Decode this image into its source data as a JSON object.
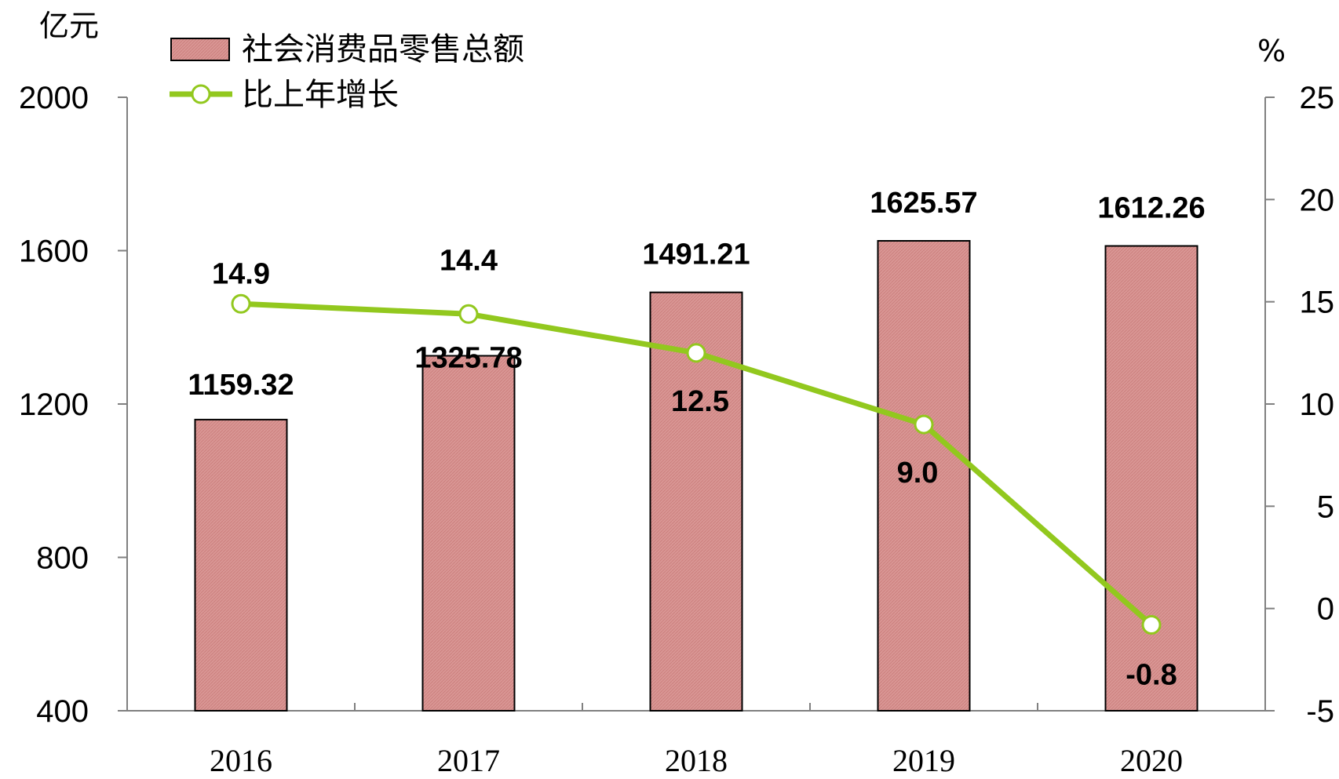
{
  "chart_data": {
    "type": "bar+line",
    "categories": [
      "2016",
      "2017",
      "2018",
      "2019",
      "2020"
    ],
    "series": [
      {
        "name": "社会消费品零售总额",
        "type": "bar",
        "axis": "left",
        "values": [
          1159.32,
          1325.78,
          1491.21,
          1625.57,
          1612.26
        ],
        "labels": [
          "1159.32",
          "1325.78",
          "1491.21",
          "1625.57",
          "1612.26"
        ],
        "color": "#D99694"
      },
      {
        "name": "比上年增长",
        "type": "line",
        "axis": "right",
        "values": [
          14.9,
          14.4,
          12.5,
          9.0,
          -0.8
        ],
        "labels": [
          "14.9",
          "14.4",
          "12.5",
          "9.0",
          "-0.8"
        ],
        "color": "#92C81E"
      }
    ],
    "left_axis": {
      "unit": "亿元",
      "min": 400,
      "max": 2000,
      "ticks": [
        "400",
        "800",
        "1200",
        "1600",
        "2000"
      ]
    },
    "right_axis": {
      "unit": "%",
      "min": -5,
      "max": 25,
      "ticks": [
        "-5",
        "0",
        "5",
        "10",
        "15",
        "20",
        "25"
      ]
    },
    "legend_position": "top-left",
    "grid": false
  }
}
